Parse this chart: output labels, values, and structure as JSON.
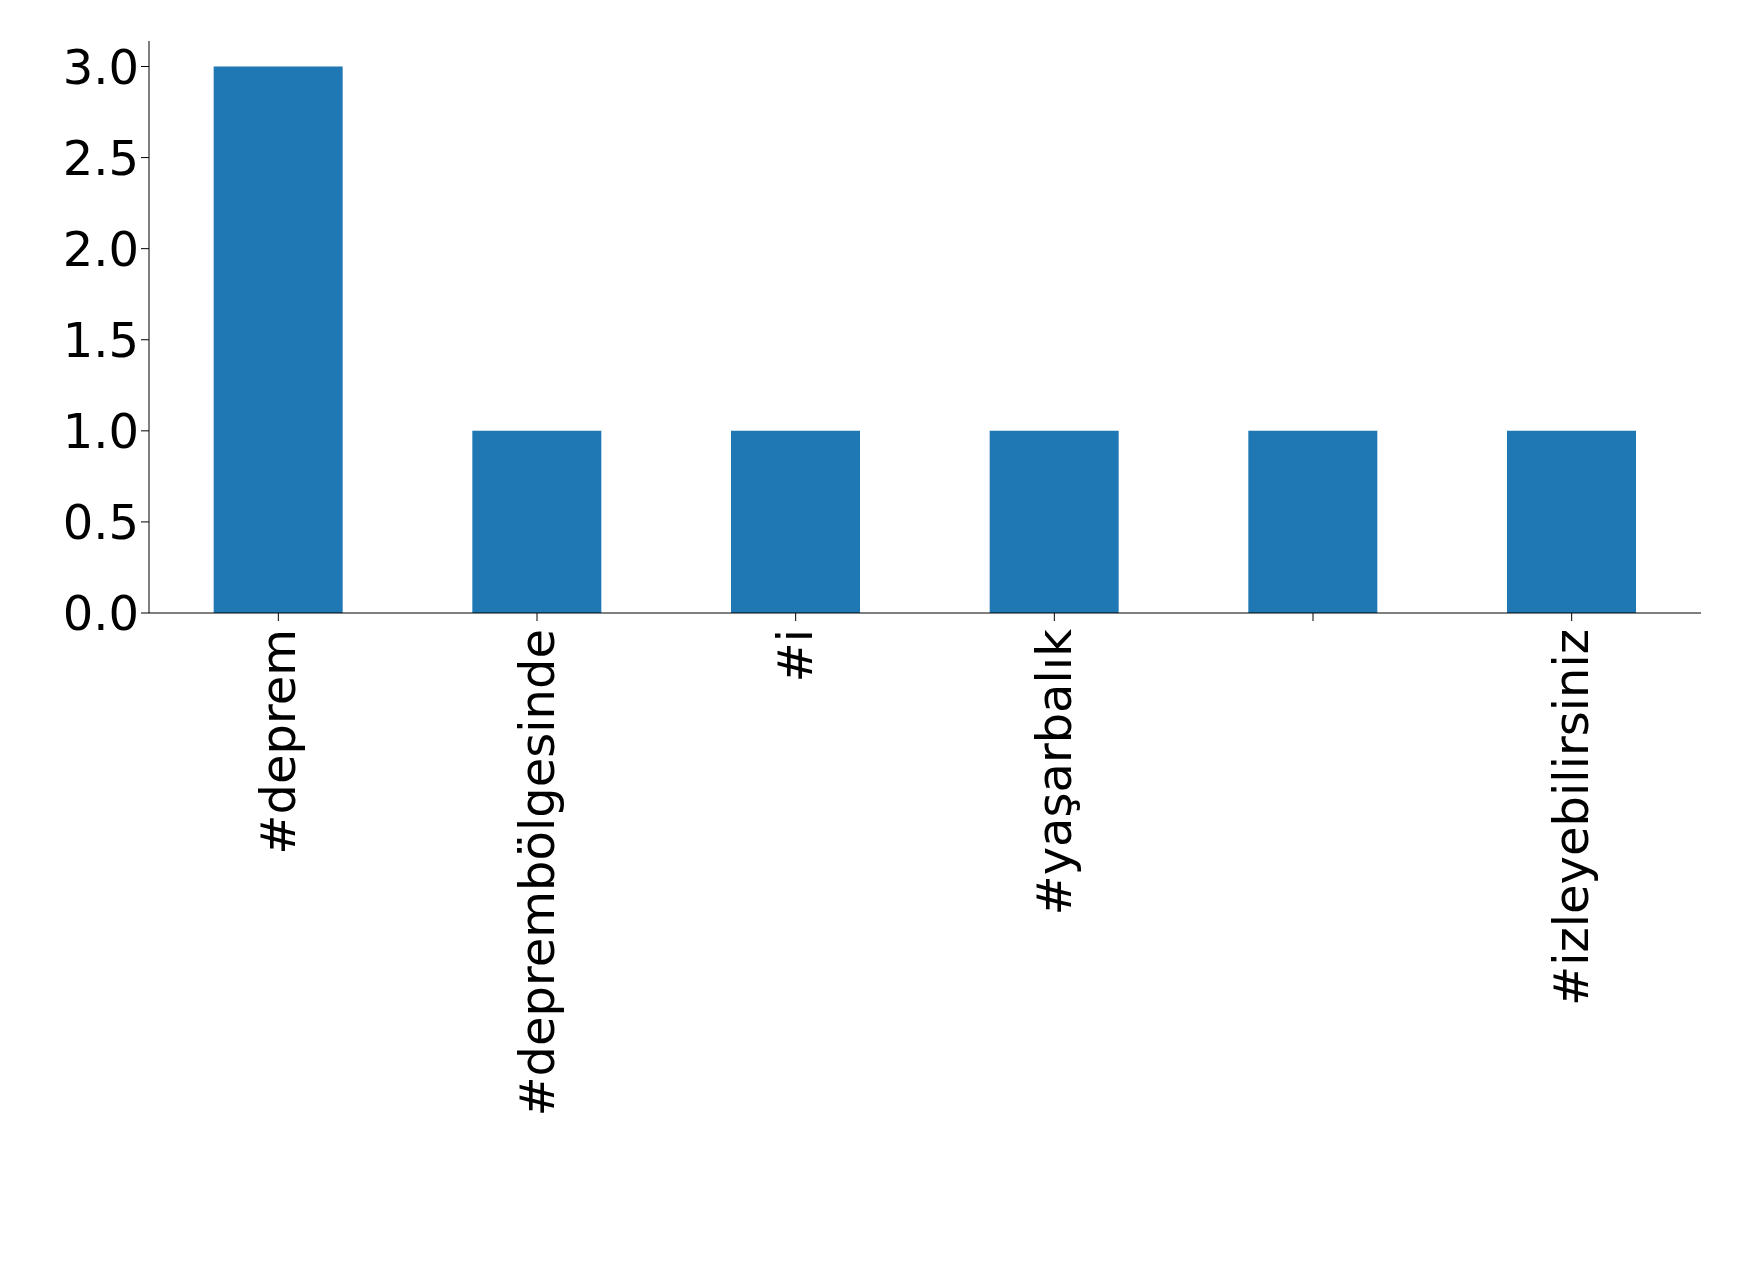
{
  "chart_data": {
    "type": "bar",
    "categories": [
      "#deprem",
      "#deprembölgesinde",
      "#i",
      "#yaşarbalık",
      null,
      "#izleyebilirsiniz"
    ],
    "values": [
      3,
      1,
      1,
      1,
      1,
      1
    ],
    "color": "#1f77b4",
    "ylim": [
      0,
      3.14
    ],
    "yticks": [
      {
        "value": 0,
        "label": "0.0"
      },
      {
        "value": 0.5,
        "label": "0.5"
      },
      {
        "value": 1,
        "label": "1.0"
      },
      {
        "value": 1.5,
        "label": "1.5"
      },
      {
        "value": 2,
        "label": "2.0"
      },
      {
        "value": 2.5,
        "label": "2.5"
      },
      {
        "value": 3,
        "label": "3.0"
      }
    ],
    "grid": false,
    "legend": false
  }
}
